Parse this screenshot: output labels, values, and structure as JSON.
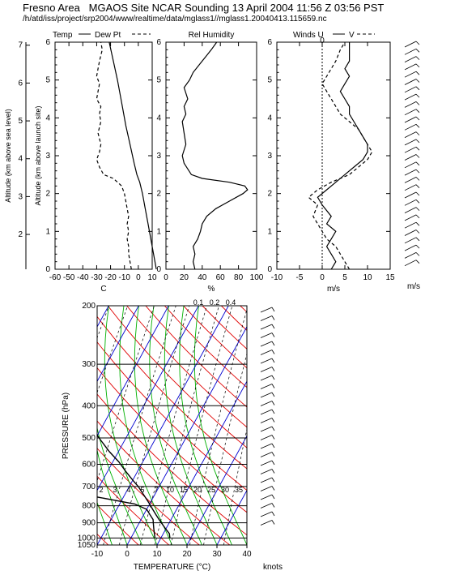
{
  "header": {
    "title": "Fresno Area   MGAOS Site NCAR Sounding 13 April 2004 11:56 Z 03:56 PST",
    "path": "/h/atd/iss/project/srp2004/www/realtime/data/mglass1//mglass1.20040413.115659.nc"
  },
  "chart_data": [
    {
      "type": "line",
      "id": "temp-dewpt",
      "title": "Temp — Dew Pt - -",
      "xlabel": "C",
      "ylabel": "Altitude (km above launch site)",
      "ylabel_outer": "Altitude (km above sea level)",
      "xlim": [
        -60,
        10
      ],
      "ylim": [
        0,
        6
      ],
      "xticks": [
        -60,
        -50,
        -40,
        -30,
        -20,
        -10,
        0,
        10
      ],
      "xtick_labels": [
        "-60",
        "-50",
        "-40",
        "-30",
        "-20",
        "-10",
        "0",
        "10"
      ],
      "yticks": [
        0,
        1,
        2,
        3,
        4,
        5,
        6
      ],
      "ytick_labels": [
        "0",
        "1",
        "2",
        "3",
        "4",
        "5",
        "6"
      ],
      "outer_yticks": [
        2,
        3,
        4,
        5,
        6,
        7
      ],
      "outer_ytick_labels": [
        "2",
        "3",
        "4",
        "5",
        "6",
        "7"
      ],
      "series": [
        {
          "name": "Temp",
          "style": "solid",
          "x": [
            13,
            11,
            9,
            7,
            5,
            3,
            1,
            -1,
            -3,
            -6,
            -9,
            -12,
            -15,
            -18,
            -21
          ],
          "y": [
            0,
            0.4,
            0.8,
            1.2,
            1.6,
            2.0,
            2.3,
            2.5,
            2.8,
            3.3,
            3.8,
            4.4,
            5.0,
            5.5,
            6.0
          ]
        },
        {
          "name": "Dew Pt",
          "style": "dashed",
          "x": [
            -5,
            -6,
            -7,
            -7,
            -8,
            -7,
            -8,
            -7,
            -8,
            -9,
            -10,
            -12,
            -18,
            -25,
            -28,
            -30,
            -28,
            -27,
            -29,
            -27,
            -28,
            -27,
            -30,
            -29,
            -28,
            -30,
            -29,
            -28,
            -26,
            -27
          ],
          "y": [
            0,
            0.2,
            0.4,
            0.6,
            0.8,
            1.0,
            1.2,
            1.4,
            1.6,
            1.8,
            2.0,
            2.2,
            2.4,
            2.5,
            2.7,
            2.9,
            3.1,
            3.3,
            3.6,
            3.9,
            4.1,
            4.3,
            4.5,
            4.7,
            4.9,
            5.1,
            5.3,
            5.5,
            5.8,
            6.0
          ]
        }
      ]
    },
    {
      "type": "line",
      "id": "rel-humidity",
      "title": "Rel Humidity",
      "xlabel": "%",
      "xlim": [
        0,
        100
      ],
      "ylim": [
        0,
        6
      ],
      "xticks": [
        0,
        20,
        40,
        60,
        80,
        100
      ],
      "xtick_labels": [
        "0",
        "20",
        "40",
        "60",
        "80",
        "100"
      ],
      "yticks": [
        0,
        1,
        2,
        3,
        4,
        5,
        6
      ],
      "ytick_labels": [
        "0",
        "1",
        "2",
        "3",
        "4",
        "5",
        "6"
      ],
      "series": [
        {
          "name": "RH",
          "style": "solid",
          "x": [
            32,
            30,
            32,
            30,
            35,
            38,
            40,
            45,
            55,
            70,
            85,
            90,
            87,
            70,
            40,
            28,
            20,
            18,
            22,
            20,
            18,
            22,
            20,
            24,
            20,
            26,
            30,
            40,
            50,
            56
          ],
          "y": [
            0,
            0.2,
            0.4,
            0.6,
            0.8,
            1.0,
            1.2,
            1.4,
            1.6,
            1.8,
            2.0,
            2.1,
            2.2,
            2.3,
            2.4,
            2.5,
            2.8,
            3.0,
            3.3,
            3.6,
            3.9,
            4.1,
            4.3,
            4.5,
            4.8,
            5.0,
            5.2,
            5.5,
            5.8,
            6.0
          ]
        }
      ]
    },
    {
      "type": "line",
      "id": "winds",
      "title": "Winds U — V - -",
      "xlabel": "m/s",
      "xlim": [
        -10,
        15
      ],
      "ylim": [
        0,
        6
      ],
      "xticks": [
        -10,
        -5,
        0,
        5,
        10,
        15
      ],
      "xtick_labels": [
        "-10",
        "-5",
        "0",
        "5",
        "10",
        "15"
      ],
      "yticks": [
        0,
        1,
        2,
        3,
        4,
        5,
        6
      ],
      "ytick_labels": [
        "0",
        "1",
        "2",
        "3",
        "4",
        "5",
        "6"
      ],
      "zero_label": "0",
      "series": [
        {
          "name": "U",
          "style": "solid",
          "x": [
            2,
            3,
            2,
            1,
            2,
            3,
            1,
            2,
            0,
            -1,
            1,
            3,
            5,
            7,
            9,
            10,
            10,
            9,
            8,
            7,
            6,
            6,
            5,
            4,
            5,
            6,
            5,
            6,
            6,
            6
          ],
          "y": [
            0,
            0.2,
            0.4,
            0.6,
            0.8,
            1.0,
            1.2,
            1.4,
            1.7,
            1.9,
            2.1,
            2.3,
            2.5,
            2.7,
            2.9,
            3.1,
            3.3,
            3.5,
            3.7,
            3.9,
            4.1,
            4.3,
            4.5,
            4.7,
            4.9,
            5.1,
            5.3,
            5.5,
            5.8,
            6.0
          ]
        },
        {
          "name": "V",
          "style": "dashed",
          "x": [
            6,
            5,
            4,
            3,
            1,
            0,
            -1,
            -2,
            -1,
            -3,
            -1,
            2,
            6,
            8,
            10,
            11,
            10,
            9,
            8,
            6,
            4,
            3,
            2,
            1,
            0,
            1,
            2,
            3,
            4,
            5
          ],
          "y": [
            0,
            0.2,
            0.4,
            0.6,
            0.8,
            1.0,
            1.2,
            1.4,
            1.7,
            1.9,
            2.1,
            2.3,
            2.5,
            2.7,
            2.9,
            3.1,
            3.3,
            3.5,
            3.7,
            3.9,
            4.1,
            4.3,
            4.5,
            4.7,
            4.9,
            5.1,
            5.3,
            5.5,
            5.8,
            6.0
          ]
        }
      ],
      "barb_label": "m/s"
    },
    {
      "type": "line",
      "id": "skewt",
      "title": "",
      "xlabel": "TEMPERATURE (°C)",
      "ylabel": "PRESSURE (hPa)",
      "xlim": [
        -10,
        40
      ],
      "plim": [
        1050,
        200
      ],
      "xticks": [
        -10,
        0,
        10,
        20,
        30,
        40
      ],
      "xtick_labels": [
        "-10",
        "0",
        "10",
        "20",
        "30",
        "40"
      ],
      "pressure_levels": [
        200,
        300,
        400,
        500,
        600,
        700,
        800,
        900,
        1000,
        1050
      ],
      "pressure_labels": [
        "200",
        "300",
        "400",
        "500",
        "600",
        "700",
        "800",
        "900",
        "1000",
        "1050"
      ],
      "mixing_ratio_labels": [
        "0.1",
        "0.2",
        "0.4"
      ],
      "mixing_ratio_labels_low": [
        "2",
        "3",
        "4",
        "5",
        "7",
        "10",
        "15",
        "20",
        "25",
        "30",
        "35"
      ],
      "barb_label": "knots",
      "series": [
        {
          "name": "Temperature",
          "style": "solid",
          "T": [
            13,
            12,
            10,
            8,
            6,
            4,
            2,
            0,
            -3,
            -7,
            -10,
            -14,
            -18,
            -23,
            -29,
            -35,
            -42,
            -49,
            -55
          ],
          "p": [
            1000,
            970,
            940,
            910,
            880,
            850,
            820,
            790,
            750,
            700,
            670,
            630,
            590,
            550,
            500,
            450,
            400,
            350,
            300
          ]
        },
        {
          "name": "Dewpoint",
          "style": "solid",
          "T": [
            8,
            7,
            6,
            5,
            4,
            2,
            0,
            -5,
            -20,
            -30,
            -28,
            -25,
            -32,
            -35,
            -34,
            -38,
            -50,
            -58,
            -62
          ],
          "p": [
            1000,
            970,
            940,
            910,
            880,
            850,
            820,
            790,
            750,
            700,
            670,
            630,
            590,
            550,
            500,
            450,
            400,
            350,
            300
          ]
        }
      ]
    }
  ]
}
